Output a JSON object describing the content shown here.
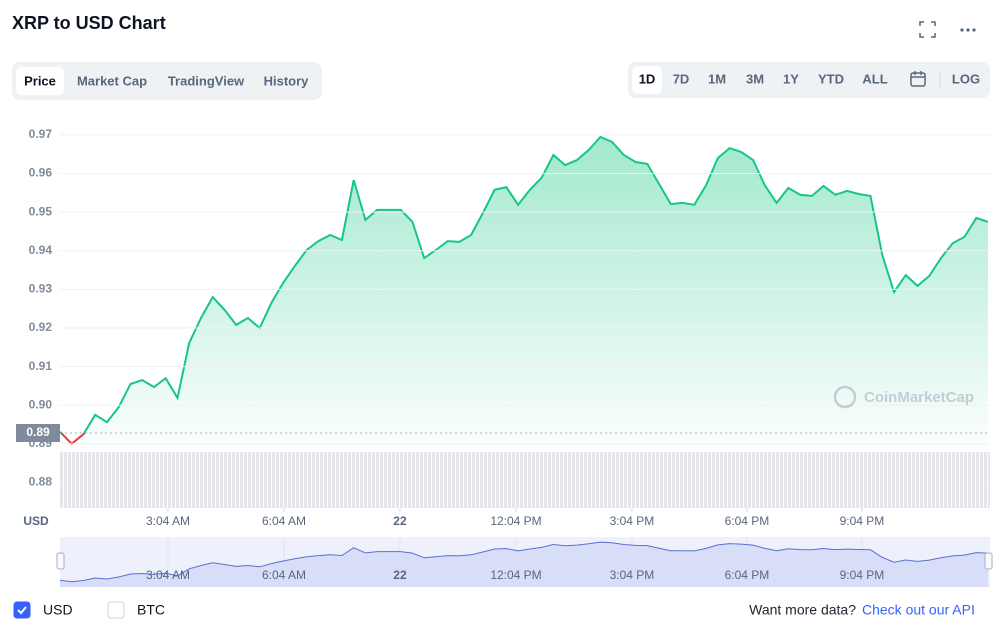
{
  "header": {
    "title": "XRP to USD Chart"
  },
  "tabs": {
    "items": [
      "Price",
      "Market Cap",
      "TradingView",
      "History"
    ],
    "active": 0
  },
  "ranges": {
    "items": [
      "1D",
      "7D",
      "1M",
      "3M",
      "1Y",
      "YTD",
      "ALL"
    ],
    "active": 0,
    "scale_button": "LOG"
  },
  "chart_data": {
    "type": "line",
    "y_label": "USD",
    "color": "#16c784",
    "down_color": "#ea3943",
    "grid": true,
    "values": [
      0.8931,
      0.89,
      0.8925,
      0.8975,
      0.8956,
      0.8995,
      0.9055,
      0.9065,
      0.9047,
      0.907,
      0.9019,
      0.9161,
      0.9226,
      0.928,
      0.9247,
      0.9208,
      0.9226,
      0.92,
      0.9265,
      0.9317,
      0.9361,
      0.9402,
      0.9425,
      0.9441,
      0.9428,
      0.9583,
      0.948,
      0.9506,
      0.9506,
      0.9506,
      0.9475,
      0.9381,
      0.9402,
      0.9425,
      0.9423,
      0.9441,
      0.9498,
      0.9558,
      0.9565,
      0.9519,
      0.9558,
      0.9589,
      0.9648,
      0.9622,
      0.9635,
      0.9661,
      0.9695,
      0.9682,
      0.9648,
      0.963,
      0.9625,
      0.9573,
      0.9521,
      0.9524,
      0.9519,
      0.957,
      0.964,
      0.9666,
      0.9656,
      0.9635,
      0.957,
      0.9524,
      0.9563,
      0.9545,
      0.9542,
      0.9568,
      0.9545,
      0.9555,
      0.9547,
      0.9542,
      0.9389,
      0.9293,
      0.9337,
      0.9309,
      0.9335,
      0.9381,
      0.942,
      0.9436,
      0.9485,
      0.9475
    ],
    "xlim": [
      0,
      79
    ],
    "xticks": [
      {
        "value": 9.19,
        "label": "3:04 AM"
      },
      {
        "value": 19.07,
        "label": "6:04 AM"
      },
      {
        "value": 28.94,
        "label": "22"
      },
      {
        "value": 38.82,
        "label": "12:04 PM"
      },
      {
        "value": 48.69,
        "label": "3:04 PM"
      },
      {
        "value": 58.48,
        "label": "6:04 PM"
      },
      {
        "value": 68.27,
        "label": "9:04 PM"
      }
    ],
    "ylim": [
      0.8735,
      0.9738
    ],
    "yticks": [
      0.88,
      0.89,
      {
        "value": 0.9,
        "label": "0.90"
      },
      0.91,
      0.92,
      0.93,
      0.94,
      0.95,
      0.96,
      0.97
    ],
    "reference_line": {
      "value": 0.8928,
      "label": "0.89"
    },
    "watermark": "CoinMarketCap"
  },
  "currency_options": [
    {
      "label": "USD",
      "checked": true
    },
    {
      "label": "BTC",
      "checked": false
    }
  ],
  "footer": {
    "text": "Want more data?",
    "link": "Check out our API"
  }
}
